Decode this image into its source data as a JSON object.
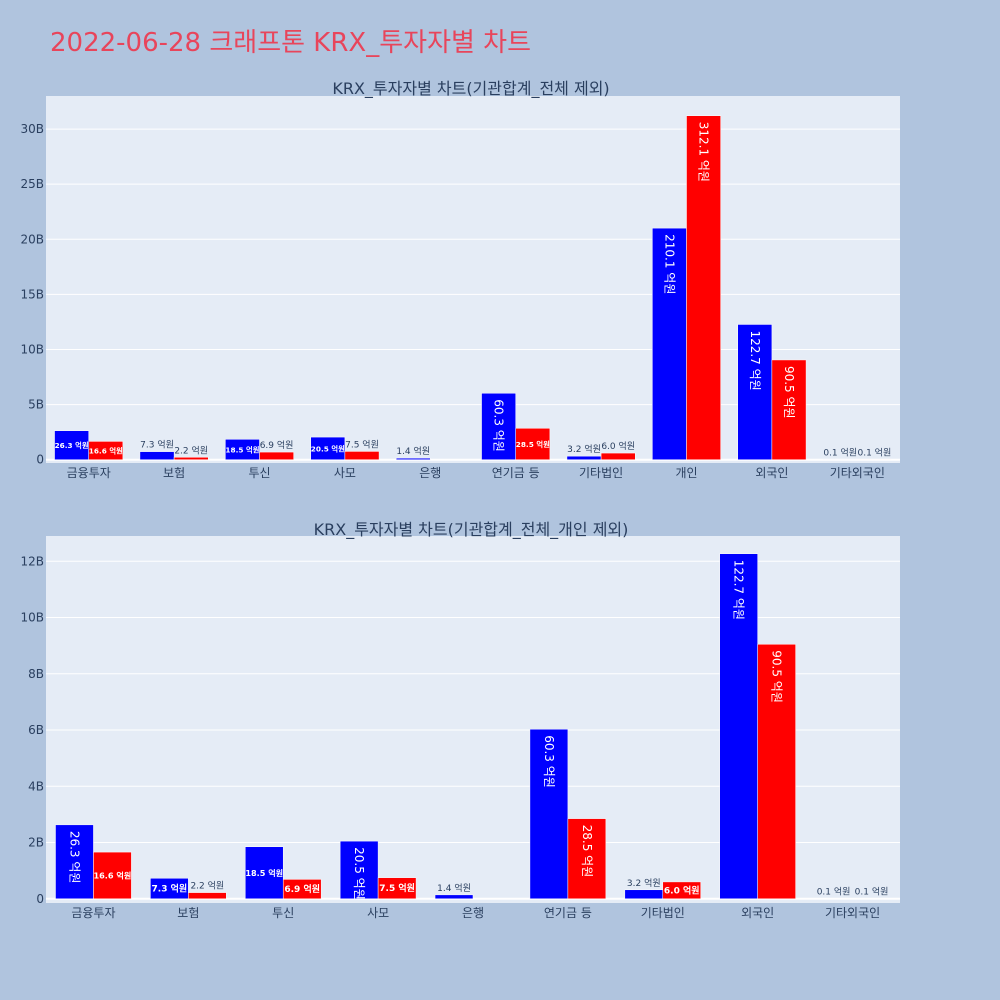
{
  "title": "2022-06-28 크래프톤 KRX_투자자별 차트",
  "colors": {
    "buy": "#0000ff",
    "sell": "#ff0000",
    "plot_bg": "#e5ecf6",
    "page_bg": "#b0c4de",
    "title": "#e8455b"
  },
  "chart_data": [
    {
      "type": "bar",
      "title": "KRX_투자자별 차트(기관합계_전체 제외)",
      "categories": [
        "금융투자",
        "보험",
        "투신",
        "사모",
        "은행",
        "연기금 등",
        "기타법인",
        "개인",
        "외국인",
        "기타외국인"
      ],
      "series": [
        {
          "values": [
            2630000000,
            730000000,
            1850000000,
            2050000000,
            140000000,
            6030000000,
            320000000,
            21010000000,
            12270000000,
            10000000
          ],
          "labels": [
            "26.3 억원",
            "7.3 억원",
            "18.5 억원",
            "20.5 억원",
            "1.4 억원",
            "60.3 억원",
            "3.2 억원",
            "210.1 억원",
            "122.7 억원",
            "0.1 억원"
          ]
        },
        {
          "values": [
            1660000000,
            220000000,
            690000000,
            750000000,
            0,
            2850000000,
            600000000,
            31210000000,
            9050000000,
            10000000
          ],
          "labels": [
            "16.6 억원",
            "2.2 억원",
            "6.9 억원",
            "7.5 억원",
            "",
            "28.5 억원",
            "6.0 억원",
            "312.1 억원",
            "90.5 억원",
            "0.1 억원"
          ]
        }
      ],
      "ylim": [
        -300000000,
        33000000000
      ],
      "yticks": [
        0,
        5000000000,
        10000000000,
        15000000000,
        20000000000,
        25000000000,
        30000000000
      ],
      "ytick_labels": [
        "0",
        "5B",
        "10B",
        "15B",
        "20B",
        "25B",
        "30B"
      ],
      "grid": true
    },
    {
      "type": "bar",
      "title": "KRX_투자자별 차트(기관합계_전체_개인 제외)",
      "categories": [
        "금융투자",
        "보험",
        "투신",
        "사모",
        "은행",
        "연기금 등",
        "기타법인",
        "외국인",
        "기타외국인"
      ],
      "series": [
        {
          "values": [
            2630000000,
            730000000,
            1850000000,
            2050000000,
            140000000,
            6030000000,
            320000000,
            12270000000,
            10000000
          ],
          "labels": [
            "26.3 억원",
            "7.3 억원",
            "18.5 억원",
            "20.5 억원",
            "1.4 억원",
            "60.3 억원",
            "3.2 억원",
            "122.7 억원",
            "0.1 억원"
          ]
        },
        {
          "values": [
            1660000000,
            220000000,
            690000000,
            750000000,
            0,
            2850000000,
            600000000,
            9050000000,
            10000000
          ],
          "labels": [
            "16.6 억원",
            "2.2 억원",
            "6.9 억원",
            "7.5 억원",
            "",
            "28.5 억원",
            "6.0 억원",
            "90.5 억원",
            "0.1 억원"
          ]
        }
      ],
      "ylim": [
        -150000000,
        12900000000
      ],
      "yticks": [
        0,
        2000000000,
        4000000000,
        6000000000,
        8000000000,
        10000000000,
        12000000000
      ],
      "ytick_labels": [
        "0",
        "2B",
        "4B",
        "6B",
        "8B",
        "10B",
        "12B"
      ],
      "grid": true
    }
  ]
}
